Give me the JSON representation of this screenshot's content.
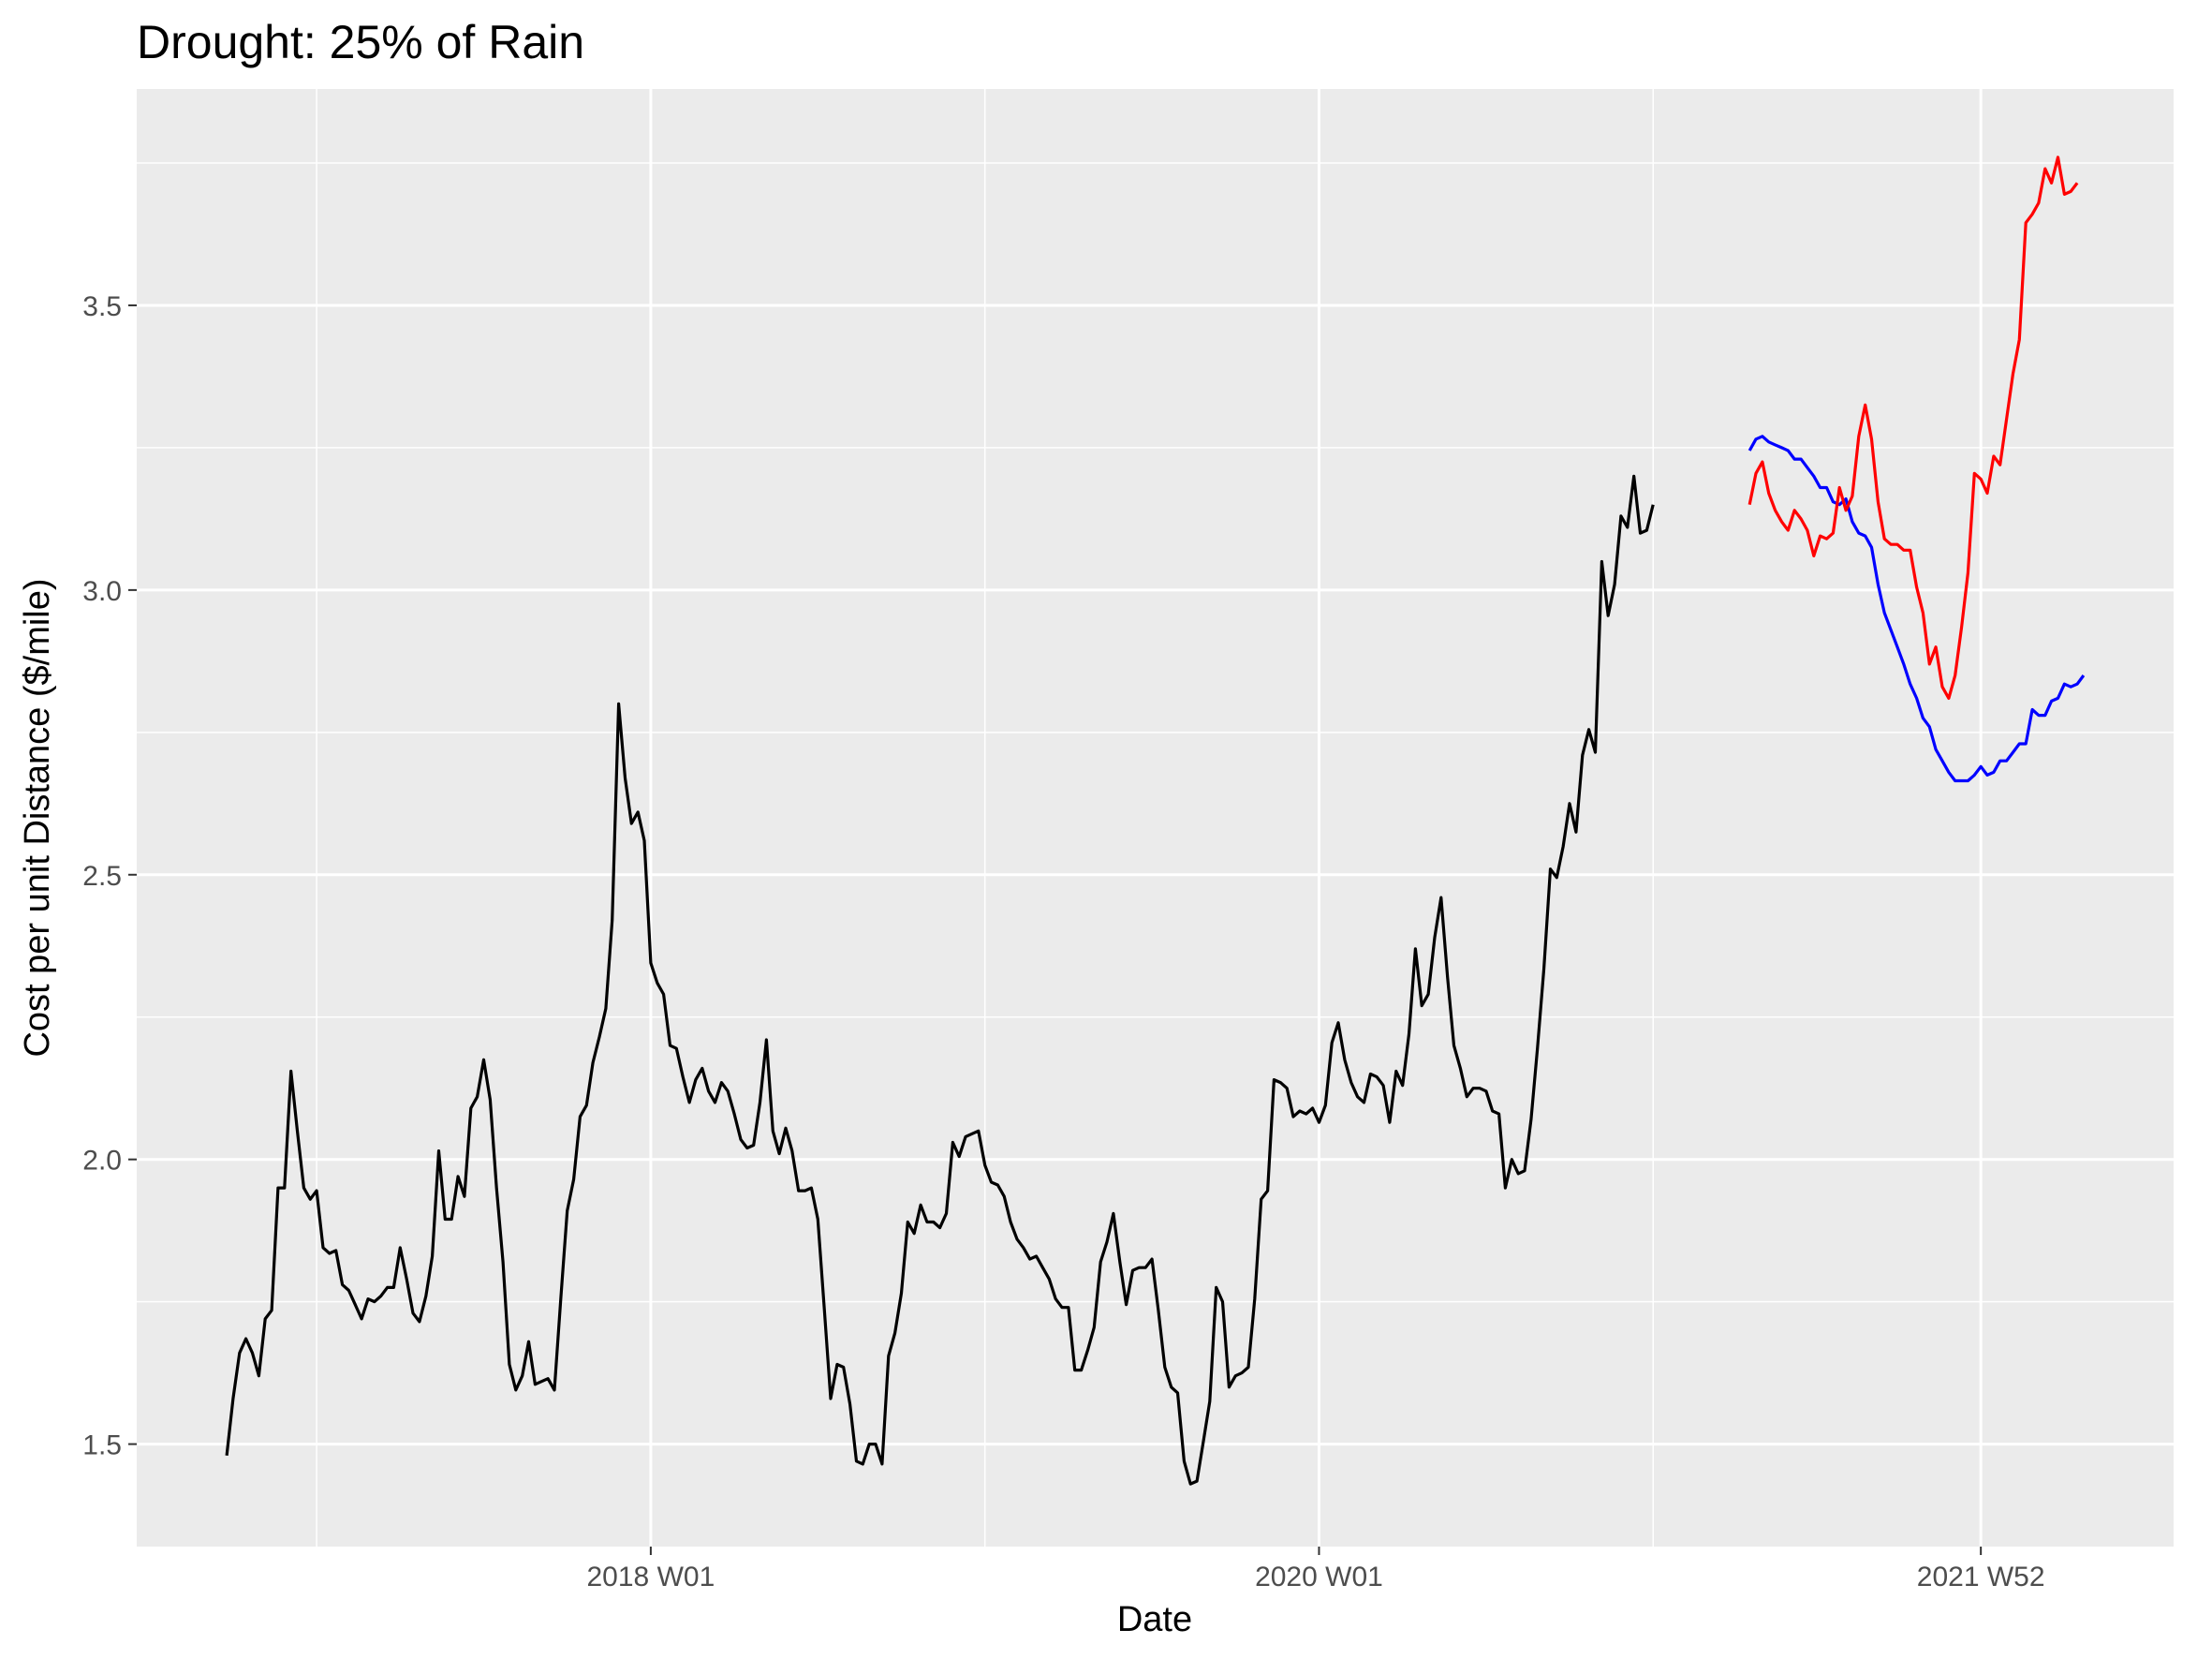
{
  "chart_data": {
    "type": "line",
    "title": "Drought: 25% of Rain",
    "xlabel": "Date",
    "ylabel": "Cost per unit Distance ($/mile)",
    "x_unit": "week",
    "x_tick_labels": [
      "2018 W01",
      "2020 W01",
      "2021 W52"
    ],
    "x_tick_weeks": [
      "2018-W01",
      "2020-W01",
      "2021-W52"
    ],
    "x_range": [
      "2016-W25",
      "2022-W30"
    ],
    "ylim": [
      1.32,
      3.88
    ],
    "y_ticks": [
      1.5,
      2.0,
      2.5,
      3.0,
      3.5
    ],
    "y_tick_labels": [
      "1.5",
      "2.0",
      "2.5",
      "3.0",
      "3.5"
    ],
    "grid": true,
    "background": "#ebebeb",
    "series": [
      {
        "color": "#000000",
        "start_week": "2016-W39",
        "values": [
          1.48,
          1.58,
          1.66,
          1.685,
          1.66,
          1.62,
          1.72,
          1.735,
          1.95,
          1.95,
          2.155,
          2.05,
          1.95,
          1.93,
          1.945,
          1.845,
          1.835,
          1.84,
          1.78,
          1.77,
          1.745,
          1.72,
          1.755,
          1.75,
          1.76,
          1.775,
          1.775,
          1.845,
          1.79,
          1.73,
          1.715,
          1.76,
          1.83,
          2.015,
          1.895,
          1.895,
          1.97,
          1.935,
          2.09,
          2.11,
          2.175,
          2.105,
          1.95,
          1.82,
          1.64,
          1.595,
          1.62,
          1.68,
          1.605,
          1.61,
          1.615,
          1.595,
          1.755,
          1.91,
          1.965,
          2.075,
          2.095,
          2.17,
          2.215,
          2.265,
          2.42,
          2.8,
          2.67,
          2.59,
          2.61,
          2.56,
          2.345,
          2.31,
          2.29,
          2.2,
          2.195,
          2.145,
          2.1,
          2.14,
          2.16,
          2.12,
          2.1,
          2.135,
          2.12,
          2.08,
          2.035,
          2.02,
          2.025,
          2.1,
          2.21,
          2.05,
          2.01,
          2.055,
          2.015,
          1.945,
          1.945,
          1.95,
          1.895,
          1.74,
          1.58,
          1.64,
          1.635,
          1.57,
          1.47,
          1.465,
          1.5,
          1.5,
          1.465,
          1.655,
          1.695,
          1.765,
          1.89,
          1.87,
          1.92,
          1.89,
          1.89,
          1.88,
          1.905,
          2.03,
          2.005,
          2.04,
          2.045,
          2.05,
          1.99,
          1.96,
          1.955,
          1.935,
          1.89,
          1.86,
          1.845,
          1.825,
          1.83,
          1.81,
          1.79,
          1.755,
          1.74,
          1.74,
          1.63,
          1.63,
          1.665,
          1.705,
          1.82,
          1.855,
          1.905,
          1.82,
          1.745,
          1.805,
          1.81,
          1.81,
          1.825,
          1.735,
          1.635,
          1.6,
          1.59,
          1.47,
          1.43,
          1.435,
          1.505,
          1.575,
          1.775,
          1.75,
          1.6,
          1.62,
          1.625,
          1.635,
          1.755,
          1.93,
          1.945,
          2.14,
          2.135,
          2.125,
          2.075,
          2.085,
          2.08,
          2.09,
          2.065,
          2.095,
          2.205,
          2.24,
          2.175,
          2.135,
          2.11,
          2.1,
          2.15,
          2.145,
          2.13,
          2.065,
          2.155,
          2.13,
          2.22,
          2.37,
          2.27,
          2.29,
          2.39,
          2.46,
          2.32,
          2.2,
          2.16,
          2.11,
          2.125,
          2.125,
          2.12,
          2.085,
          2.08,
          1.95,
          2.0,
          1.975,
          1.98,
          2.07,
          2.195,
          2.335,
          2.51,
          2.495,
          2.55,
          2.625,
          2.575,
          2.71,
          2.755,
          2.715,
          3.05,
          2.955,
          3.01,
          3.13,
          3.11,
          3.2,
          3.1,
          3.105,
          3.15
        ]
      },
      {
        "color": "#0000ff",
        "start_week": "2021-W16",
        "values": [
          3.245,
          3.265,
          3.27,
          3.26,
          3.255,
          3.25,
          3.245,
          3.23,
          3.23,
          3.215,
          3.2,
          3.18,
          3.18,
          3.155,
          3.15,
          3.16,
          3.12,
          3.1,
          3.095,
          3.075,
          3.01,
          2.96,
          2.93,
          2.9,
          2.87,
          2.835,
          2.81,
          2.775,
          2.76,
          2.72,
          2.7,
          2.68,
          2.665,
          2.665,
          2.665,
          2.675,
          2.69,
          2.675,
          2.68,
          2.7,
          2.7,
          2.715,
          2.73,
          2.73,
          2.79,
          2.78,
          2.78,
          2.805,
          2.81,
          2.835,
          2.83,
          2.835,
          2.85
        ]
      },
      {
        "color": "#ff0000",
        "start_week": "2021-W16",
        "values": [
          3.15,
          3.205,
          3.225,
          3.17,
          3.14,
          3.12,
          3.105,
          3.14,
          3.125,
          3.105,
          3.06,
          3.095,
          3.09,
          3.1,
          3.18,
          3.14,
          3.165,
          3.27,
          3.325,
          3.265,
          3.155,
          3.09,
          3.08,
          3.08,
          3.07,
          3.07,
          3.005,
          2.96,
          2.87,
          2.9,
          2.83,
          2.81,
          2.85,
          2.935,
          3.03,
          3.205,
          3.195,
          3.17,
          3.235,
          3.22,
          3.3,
          3.38,
          3.44,
          3.645,
          3.66,
          3.68,
          3.74,
          3.715,
          3.76,
          3.695,
          3.7,
          3.715
        ]
      }
    ]
  }
}
